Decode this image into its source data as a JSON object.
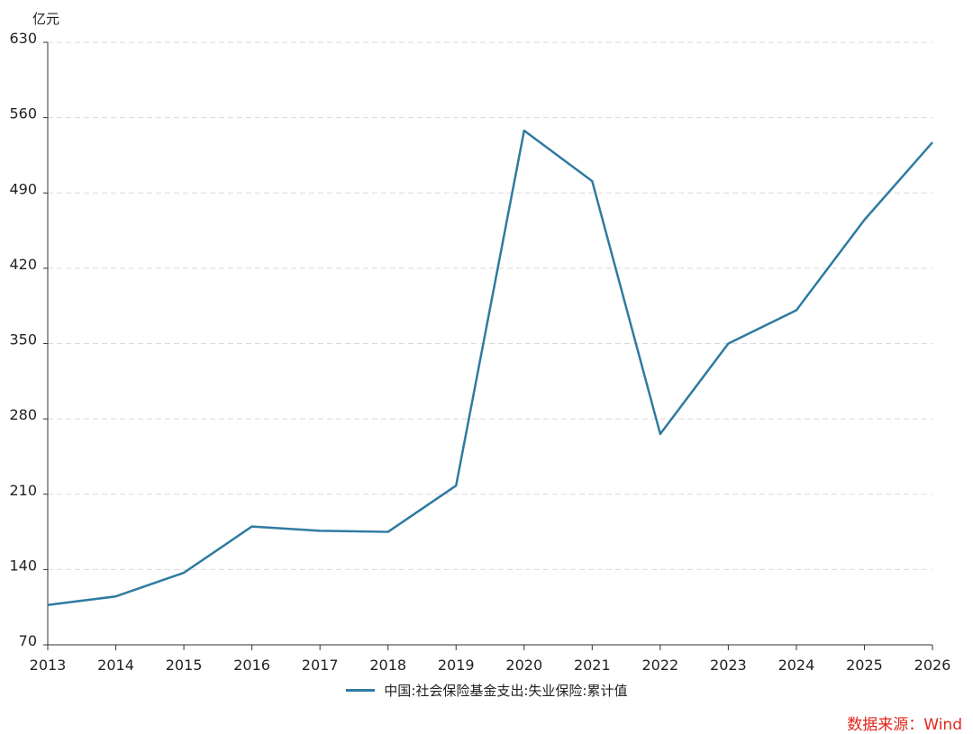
{
  "chart_data": {
    "type": "line",
    "ylabel": "亿元",
    "ylim": [
      70,
      630
    ],
    "yticks": [
      70,
      140,
      210,
      280,
      350,
      420,
      490,
      560,
      630
    ],
    "xticks": [
      "2013",
      "2014",
      "2015",
      "2016",
      "2017",
      "2018",
      "2019",
      "2020",
      "2021",
      "2022",
      "2023",
      "2024",
      "2025",
      "2026"
    ],
    "grid": true,
    "legend_position": "bottom-center",
    "series": [
      {
        "name": "中国:社会保险基金支出:失业保险:累计值",
        "color": "#2e7ba0",
        "x": [
          "2013",
          "2014",
          "2015",
          "2016",
          "2017",
          "2018",
          "2019",
          "2020",
          "2021",
          "2022",
          "2023",
          "2024",
          "2025",
          "2026"
        ],
        "values": [
          107,
          115,
          137,
          180,
          176,
          175,
          218,
          548,
          501,
          266,
          350,
          381,
          465,
          537
        ]
      }
    ]
  },
  "source_text": "数据来源：Wind"
}
